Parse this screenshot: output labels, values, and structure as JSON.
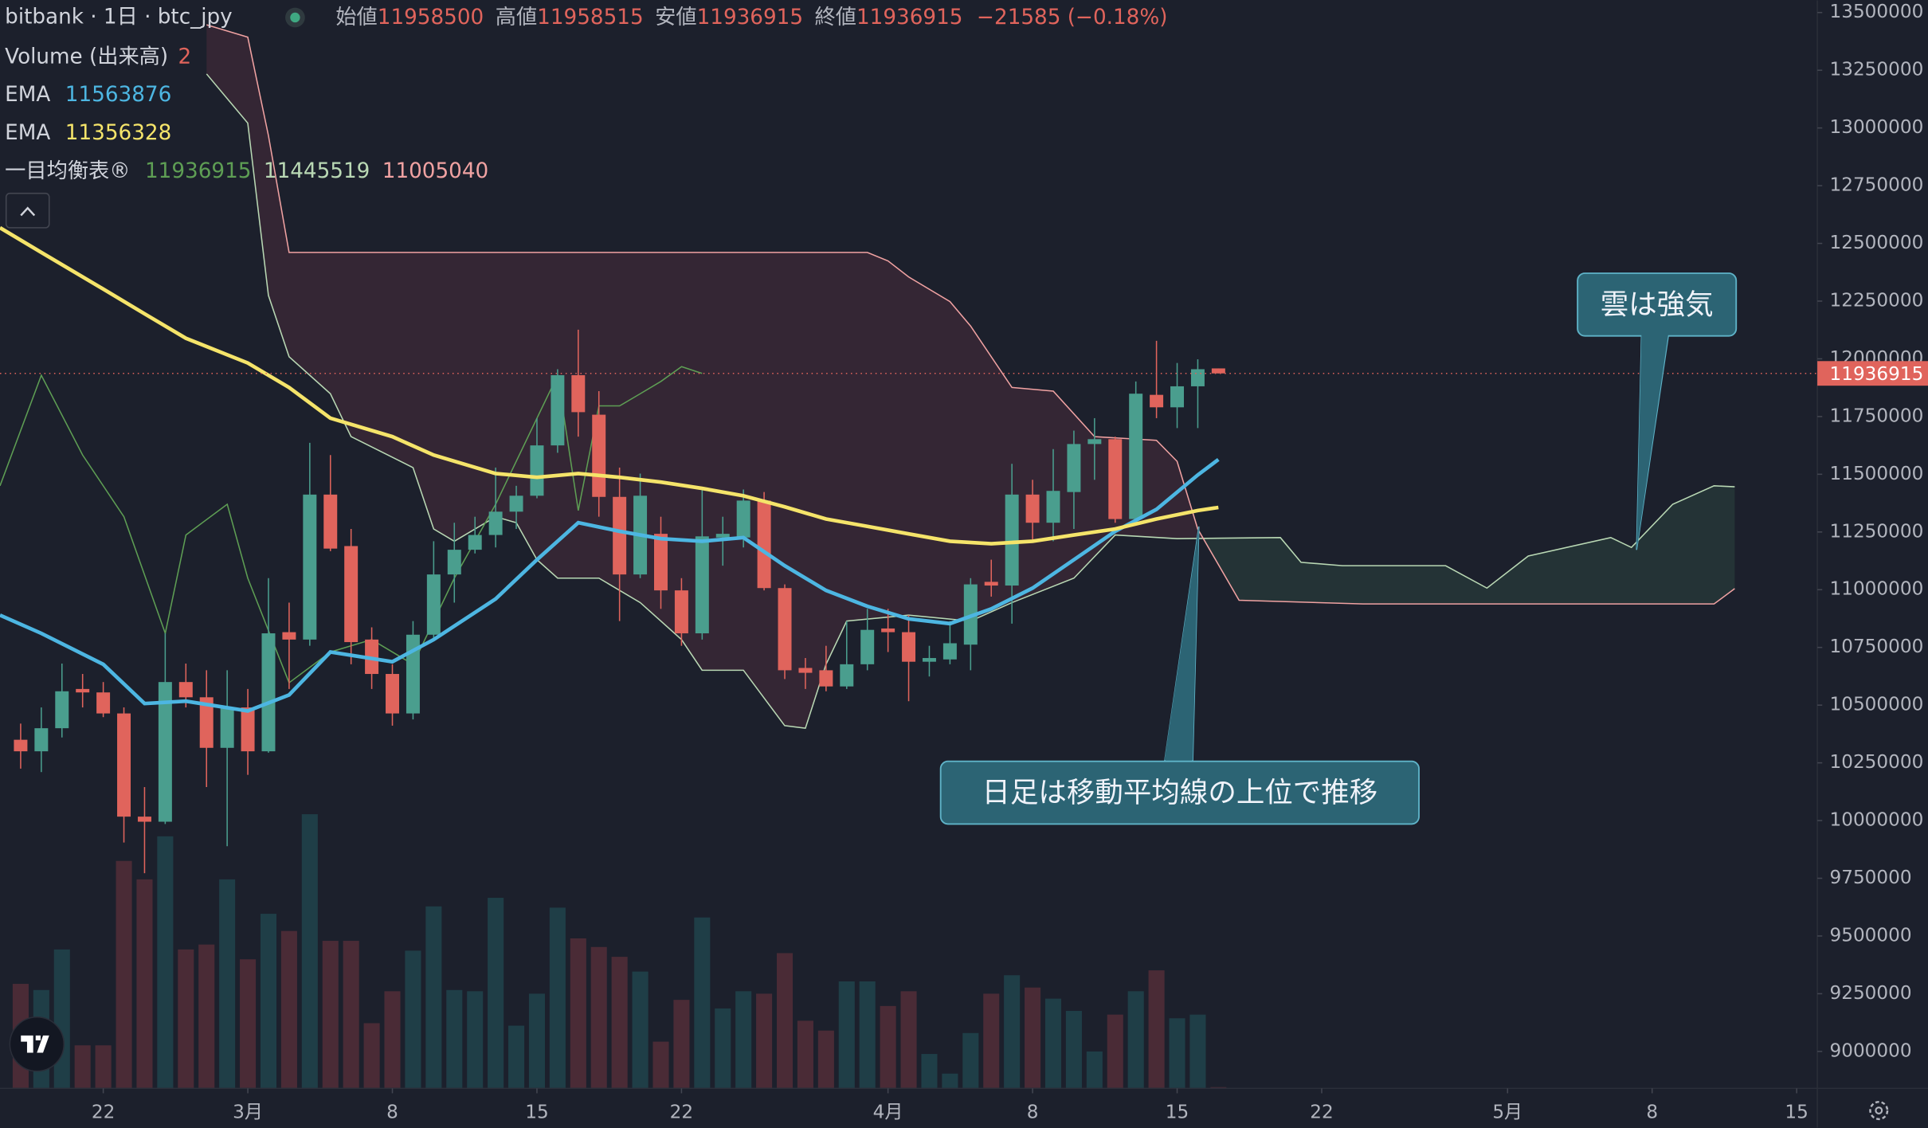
{
  "header": {
    "symbol": "bitbank · 1日 · btc_jpy",
    "labels": [
      "始値",
      "高値",
      "安値",
      "終値"
    ],
    "change": "−21585 (−0.18%)"
  },
  "chart_data": {
    "type": "candlestick",
    "xlim": [
      "02-17",
      "05-16"
    ],
    "ylim": [
      8840000,
      13553000
    ],
    "grid": false,
    "up_color": "#4a9e8e",
    "down_color": "#e0645c",
    "x": [
      "02-18",
      "02-19",
      "02-20",
      "02-21",
      "02-22",
      "02-23",
      "02-24",
      "02-25",
      "02-26",
      "02-27",
      "02-28",
      "03-01",
      "03-02",
      "03-03",
      "03-04",
      "03-05",
      "03-06",
      "03-07",
      "03-08",
      "03-09",
      "03-10",
      "03-11",
      "03-12",
      "03-13",
      "03-14",
      "03-15",
      "03-16",
      "03-17",
      "03-18",
      "03-19",
      "03-20",
      "03-21",
      "03-22",
      "03-23",
      "03-24",
      "03-25",
      "03-26",
      "03-27",
      "03-28",
      "03-29",
      "03-30",
      "03-31",
      "04-01",
      "04-02",
      "04-03",
      "04-04",
      "04-05",
      "04-06",
      "04-07",
      "04-08",
      "04-09",
      "04-10",
      "04-11",
      "04-12",
      "04-13",
      "04-14",
      "04-15",
      "04-16",
      "04-17"
    ],
    "open": [
      10350000,
      10300000,
      10400000,
      10570000,
      10555000,
      10464000,
      10017000,
      9995000,
      10600000,
      10534000,
      10315000,
      10490000,
      10300000,
      10816000,
      10784000,
      11412000,
      11189000,
      10784000,
      10635000,
      10464000,
      10805000,
      11066000,
      11173000,
      11237000,
      11338000,
      11407000,
      11625000,
      11929000,
      11758000,
      11402000,
      11066000,
      11242000,
      10997000,
      10811000,
      11226000,
      11226000,
      11386000,
      11007000,
      10661000,
      10651000,
      10581000,
      10677000,
      10832000,
      10816000,
      10688000,
      10698000,
      10762000,
      11034000,
      11018000,
      11412000,
      11290000,
      11423000,
      11631000,
      11652000,
      11306000,
      11844000,
      11790000,
      11881000,
      11958500
    ],
    "high": [
      10420000,
      10490000,
      10680000,
      10635000,
      10600000,
      10490000,
      10145000,
      10811000,
      10680000,
      10651000,
      10651000,
      10570000,
      11050000,
      10944000,
      11636000,
      11583000,
      11263000,
      10837000,
      10677000,
      10864000,
      11210000,
      11290000,
      11316000,
      11529000,
      11450000,
      11743000,
      11955000,
      12126000,
      11860000,
      11529000,
      11503000,
      11316000,
      11050000,
      11434000,
      11316000,
      11434000,
      11423000,
      11023000,
      10704000,
      10757000,
      10864000,
      10917000,
      10917000,
      10890000,
      10757000,
      10864000,
      11050000,
      11130000,
      11545000,
      11476000,
      11609000,
      11689000,
      11743000,
      11663000,
      11902000,
      12078000,
      11982000,
      11998000,
      11958515
    ],
    "low": [
      10225000,
      10210000,
      10360000,
      10490000,
      10448000,
      9905000,
      9772000,
      9985000,
      10490000,
      10145000,
      9889000,
      10198000,
      10294000,
      10570000,
      10757000,
      11167000,
      10677000,
      10570000,
      10411000,
      10438000,
      10784000,
      10944000,
      11157000,
      11183000,
      11263000,
      11396000,
      11593000,
      11663000,
      11316000,
      10864000,
      11050000,
      10917000,
      10757000,
      10784000,
      11104000,
      11183000,
      10997000,
      10613000,
      10570000,
      10560000,
      10570000,
      10651000,
      10730000,
      10517000,
      10624000,
      10677000,
      10651000,
      10970000,
      10853000,
      11210000,
      11210000,
      11263000,
      11476000,
      11290000,
      11290000,
      11743000,
      11700000,
      11700000,
      11936915
    ],
    "close": [
      10300000,
      10400000,
      10560000,
      10555000,
      10464000,
      10017000,
      9995000,
      10600000,
      10534000,
      10315000,
      10490000,
      10300000,
      10811000,
      10784000,
      11412000,
      11178000,
      10773000,
      10635000,
      10464000,
      10805000,
      11066000,
      11173000,
      11237000,
      11338000,
      11407000,
      11625000,
      11929000,
      11769000,
      11402000,
      11066000,
      11407000,
      10997000,
      10811000,
      11231000,
      11242000,
      11386000,
      11007000,
      10651000,
      10640000,
      10581000,
      10677000,
      10826000,
      10816000,
      10688000,
      10704000,
      10768000,
      11023000,
      11018000,
      11412000,
      11290000,
      11428000,
      11631000,
      11652000,
      11306000,
      11849000,
      11790000,
      11881000,
      11955000,
      11936915
    ],
    "volume": {
      "name": "Volume (出来高)",
      "vlim": [
        0,
        500
      ],
      "up_color": "#1f3e47",
      "down_color": "#4a2b36",
      "values": [
        170,
        160,
        226,
        70,
        70,
        370,
        340,
        410,
        226,
        234,
        340,
        210,
        284,
        256,
        446,
        240,
        240,
        106,
        158,
        224,
        296,
        160,
        158,
        310,
        102,
        154,
        294,
        244,
        230,
        214,
        190,
        76,
        144,
        278,
        130,
        158,
        154,
        220,
        110,
        94,
        174,
        174,
        134,
        158,
        56,
        24,
        90,
        154,
        184,
        164,
        146,
        126,
        60,
        120,
        158,
        192,
        114,
        120,
        2
      ]
    },
    "series": [
      {
        "name": "EMA",
        "color": "#4db6e2",
        "x": [
          "02-17",
          "02-19",
          "02-22",
          "02-24",
          "02-26",
          "03-01",
          "03-03",
          "03-05",
          "03-08",
          "03-10",
          "03-13",
          "03-15",
          "03-17",
          "03-19",
          "03-21",
          "03-23",
          "03-25",
          "03-27",
          "03-29",
          "03-31",
          "04-02",
          "04-04",
          "04-06",
          "04-08",
          "04-10",
          "04-12",
          "04-14",
          "04-16",
          "04-17"
        ],
        "values": [
          10890000,
          10811000,
          10677000,
          10507000,
          10517000,
          10475000,
          10544000,
          10730000,
          10688000,
          10784000,
          10960000,
          11130000,
          11290000,
          11253000,
          11221000,
          11210000,
          11226000,
          11104000,
          10997000,
          10928000,
          10874000,
          10853000,
          10917000,
          11007000,
          11130000,
          11253000,
          11348000,
          11497000,
          11563876
        ]
      },
      {
        "name": "EMA",
        "color": "#f5e46a",
        "x": [
          "02-17",
          "02-19",
          "02-22",
          "02-24",
          "02-26",
          "03-01",
          "03-03",
          "03-05",
          "03-08",
          "03-10",
          "03-13",
          "03-15",
          "03-17",
          "03-19",
          "03-21",
          "03-23",
          "03-25",
          "03-27",
          "03-29",
          "03-31",
          "04-02",
          "04-04",
          "04-06",
          "04-08",
          "04-10",
          "04-12",
          "04-14",
          "04-16",
          "04-17"
        ],
        "values": [
          12568000,
          12461000,
          12302000,
          12195000,
          12089000,
          11982000,
          11876000,
          11743000,
          11663000,
          11583000,
          11503000,
          11487000,
          11503000,
          11487000,
          11466000,
          11439000,
          11407000,
          11359000,
          11306000,
          11274000,
          11242000,
          11210000,
          11199000,
          11210000,
          11237000,
          11263000,
          11306000,
          11343000,
          11356328
        ]
      }
    ],
    "ichimoku": {
      "name": "一目均衡表®",
      "up_cloud": "rgba(70,120,90,0.22)",
      "down_cloud": "rgba(140,60,80,0.22)",
      "lagging": {
        "color": "#5e9e54",
        "x": [
          "02-17",
          "02-19",
          "02-21",
          "02-23",
          "02-25",
          "02-26",
          "02-28",
          "03-01",
          "03-03",
          "03-05",
          "03-07",
          "03-09",
          "03-11",
          "03-13",
          "03-15",
          "03-16",
          "03-17",
          "03-18",
          "03-19",
          "03-20",
          "03-21",
          "03-22",
          "03-23"
        ],
        "values": [
          11450000,
          11929000,
          11583000,
          11316000,
          10811000,
          11237000,
          11370000,
          11050000,
          10597000,
          10730000,
          10784000,
          10677000,
          11050000,
          11370000,
          11743000,
          11929000,
          11343000,
          11796000,
          11796000,
          11849000,
          11902000,
          11966000,
          11936915
        ]
      },
      "span_a": {
        "color": "#b9d8b4",
        "x": [
          "02-27",
          "03-01",
          "03-02",
          "03-03",
          "03-05",
          "03-06",
          "03-09",
          "03-10",
          "03-11",
          "03-13",
          "03-14",
          "03-15",
          "03-16",
          "03-18",
          "03-20",
          "03-22",
          "03-23",
          "03-25",
          "03-27",
          "03-28",
          "03-29",
          "03-30",
          "04-02",
          "04-05",
          "04-07",
          "04-10",
          "04-12",
          "04-15",
          "04-20",
          "04-21",
          "04-23",
          "04-28",
          "04-30",
          "05-02",
          "05-06",
          "05-07",
          "05-09",
          "05-11",
          "05-12"
        ],
        "values": [
          13234000,
          13021000,
          12275000,
          12009000,
          11849000,
          11663000,
          11529000,
          11263000,
          11210000,
          11316000,
          11290000,
          11130000,
          11050000,
          11050000,
          10944000,
          10784000,
          10651000,
          10651000,
          10411000,
          10400000,
          10677000,
          10864000,
          10890000,
          10864000,
          10944000,
          11050000,
          11237000,
          11221000,
          11226000,
          11119000,
          11104000,
          11104000,
          11007000,
          11146000,
          11226000,
          11183000,
          11370000,
          11450000,
          11445519
        ]
      },
      "span_b": {
        "color": "#f0a2a2",
        "x": [
          "02-27",
          "03-01",
          "03-02",
          "03-03",
          "03-31",
          "04-01",
          "04-02",
          "04-04",
          "04-05",
          "04-07",
          "04-09",
          "04-11",
          "04-14",
          "04-15",
          "04-16",
          "04-18",
          "04-24",
          "05-11",
          "05-12"
        ],
        "values": [
          13447000,
          13393000,
          12967000,
          12461000,
          12461000,
          12424000,
          12355000,
          12248000,
          12142000,
          11876000,
          11860000,
          11663000,
          11647000,
          11556000,
          11263000,
          10954000,
          10938000,
          10938000,
          11005040
        ]
      }
    },
    "yticks": [
      9000000,
      9250000,
      9500000,
      9750000,
      10000000,
      10250000,
      10500000,
      10750000,
      11000000,
      11250000,
      11500000,
      11750000,
      12000000,
      12250000,
      12500000,
      12750000,
      13000000,
      13250000,
      13500000
    ],
    "xticks": [
      {
        "value": "02-22",
        "label": "22"
      },
      {
        "value": "03-01",
        "label": "3月"
      },
      {
        "value": "03-08",
        "label": "8"
      },
      {
        "value": "03-15",
        "label": "15"
      },
      {
        "value": "03-22",
        "label": "22"
      },
      {
        "value": "04-01",
        "label": "4月"
      },
      {
        "value": "04-08",
        "label": "8"
      },
      {
        "value": "04-15",
        "label": "15"
      },
      {
        "value": "04-22",
        "label": "22"
      },
      {
        "value": "05-01",
        "label": "5月"
      },
      {
        "value": "05-08",
        "label": "8"
      },
      {
        "value": "05-15",
        "label": "15"
      }
    ],
    "annotations": [
      {
        "text": "雲は強気"
      },
      {
        "text": "日足は移動平均線の上位で推移"
      }
    ]
  }
}
